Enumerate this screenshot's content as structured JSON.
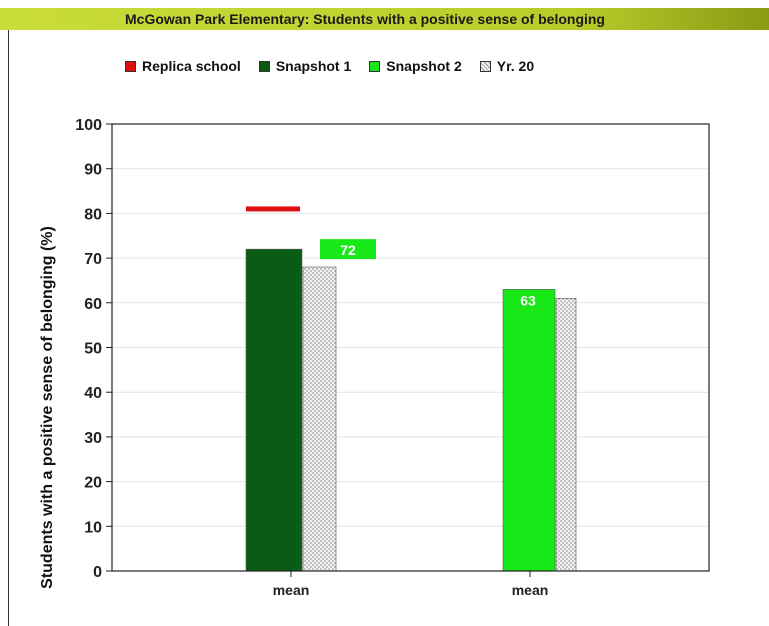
{
  "header": {
    "title": "McGowan Park Elementary: Students with a positive sense of belonging"
  },
  "colors": {
    "replica": "#dd1111",
    "snapshot1": "#0a5c14",
    "snapshot2": "#18e818",
    "yr": "#d4d4d4"
  },
  "legend": [
    {
      "label": "Replica school",
      "color": "#dd1111"
    },
    {
      "label": "Snapshot 1",
      "color": "#0a5c14"
    },
    {
      "label": "Snapshot 2",
      "color": "#18e818"
    },
    {
      "label": "Yr. 20",
      "color": "#d4d4d4"
    }
  ],
  "chart_data": {
    "type": "bar",
    "title": "McGowan Park Elementary: Students with a positive sense of belonging",
    "ylabel": "Students with a positive sense of belonging (%)",
    "xlabel": "",
    "ylim": [
      0,
      100
    ],
    "yticks": [
      0,
      10,
      20,
      30,
      40,
      50,
      60,
      70,
      80,
      90,
      100
    ],
    "categories": [
      "mean",
      "mean"
    ],
    "series": [
      {
        "name": "Replica school",
        "values": [
          81,
          null
        ]
      },
      {
        "name": "Snapshot 1",
        "values": [
          72,
          null
        ]
      },
      {
        "name": "Snapshot 2",
        "values": [
          72,
          63
        ]
      },
      {
        "name": "Yr. 20",
        "values": [
          68,
          61
        ]
      }
    ],
    "data_labels": [
      "72",
      "63"
    ],
    "grid": true,
    "legend_position": "top"
  }
}
